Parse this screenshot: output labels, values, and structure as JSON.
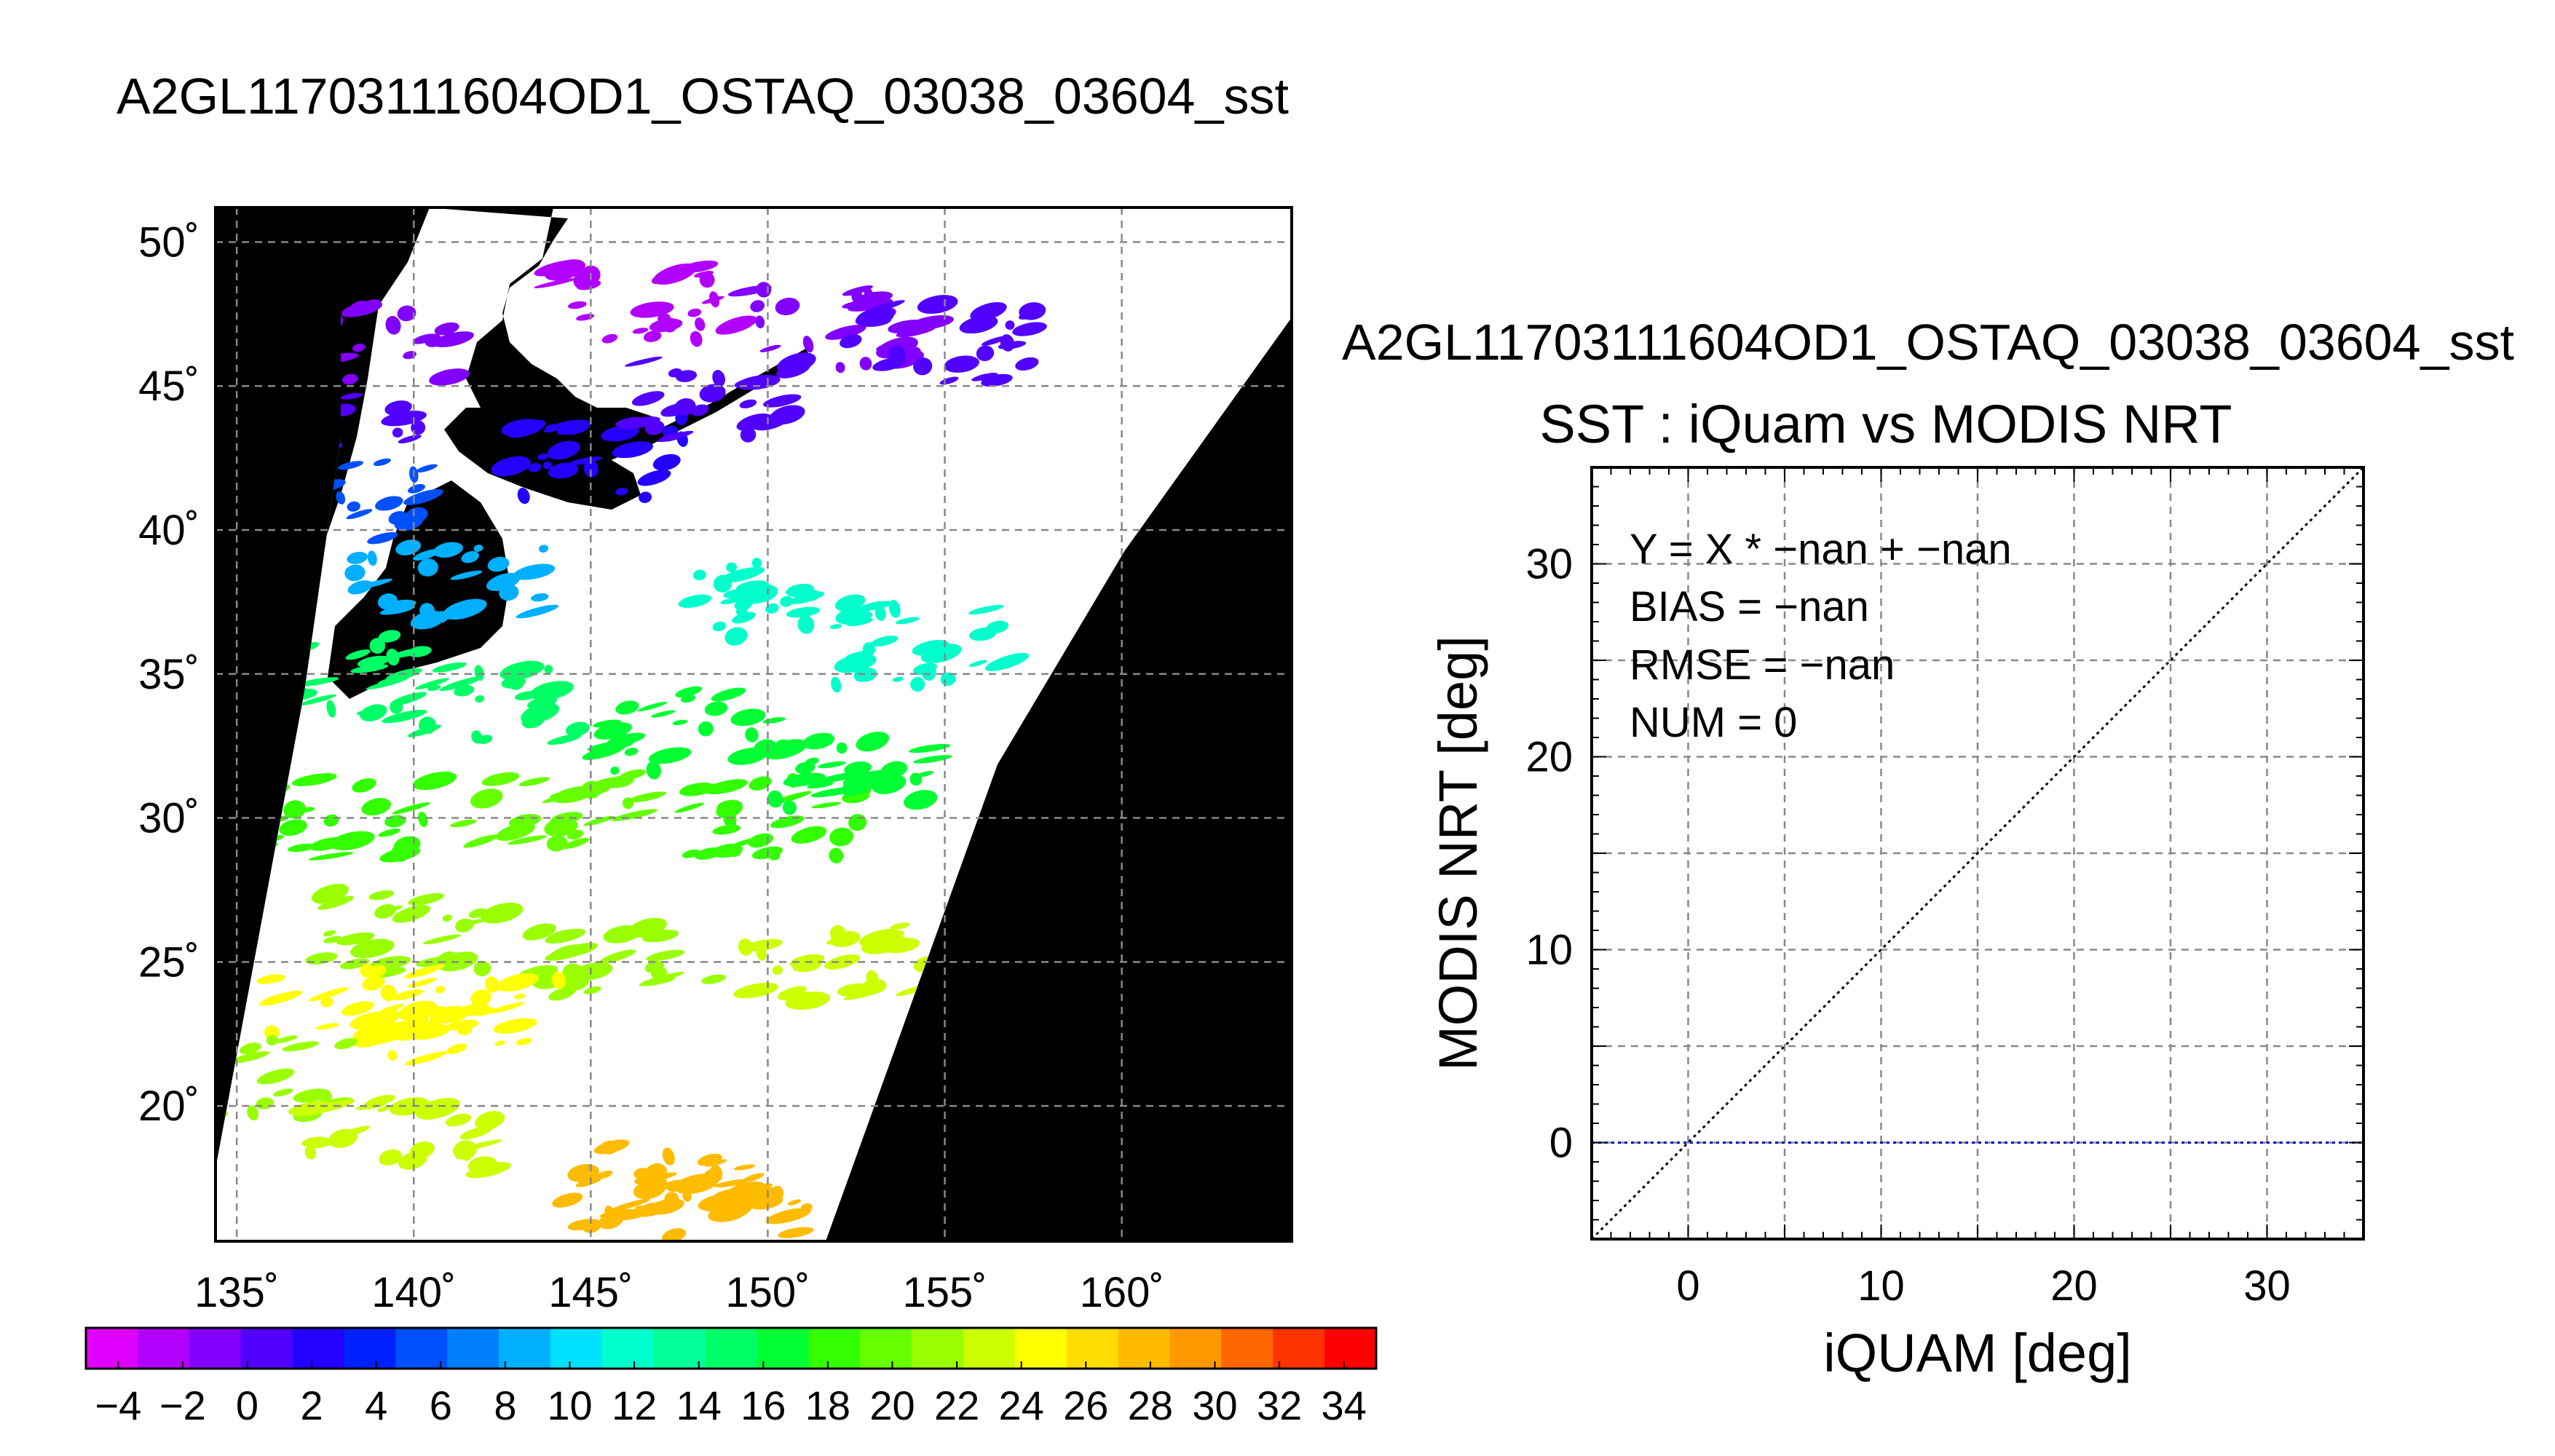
{
  "title": "A2GL11703111604OD1_OSTAQ_03038_03604_sst",
  "colors": {
    "land": "#000000",
    "no_data": "#ffffff",
    "grid": "#888888",
    "identity_line": "#000000",
    "zero_line": "#0000cc"
  },
  "chart_data": [
    {
      "type": "heatmap",
      "title": "A2GL11703111604OD1_OSTAQ_03038_03604_sst",
      "x_ticks": [
        "135˚",
        "140˚",
        "145˚",
        "150˚",
        "155˚",
        "160˚"
      ],
      "x_tick_values": [
        135,
        140,
        145,
        150,
        155,
        160
      ],
      "y_ticks": [
        "50˚",
        "45˚",
        "40˚",
        "35˚",
        "30˚",
        "25˚",
        "20˚"
      ],
      "y_tick_values": [
        50,
        45,
        40,
        35,
        30,
        25,
        20
      ],
      "xlim": [
        134.4,
        164.8
      ],
      "ylim": [
        15.3,
        51.2
      ],
      "grid": true,
      "colorbar": {
        "labels": [
          "−4",
          "−2",
          "0",
          "2",
          "4",
          "6",
          "8",
          "10",
          "12",
          "14",
          "16",
          "18",
          "20",
          "22",
          "24",
          "26",
          "28",
          "30",
          "32",
          "34"
        ],
        "range": [
          -5,
          35
        ],
        "colors": [
          "#e000ff",
          "#b100ff",
          "#8200ff",
          "#5200ff",
          "#2400ff",
          "#0020ff",
          "#0050ff",
          "#0080ff",
          "#00b0ff",
          "#00e0ff",
          "#00ffcc",
          "#00ff99",
          "#00ff66",
          "#00ff33",
          "#33ff00",
          "#66ff00",
          "#99ff00",
          "#ccff00",
          "#ffff00",
          "#ffdd00",
          "#ffbb00",
          "#ff9900",
          "#ff6600",
          "#ff3300",
          "#ff0000"
        ]
      },
      "sst_patches": [
        {
          "lon": 138.5,
          "lat": 46.5,
          "value": -1
        },
        {
          "lon": 137.5,
          "lat": 44.0,
          "value": 1
        },
        {
          "lon": 138.0,
          "lat": 41.0,
          "value": 6
        },
        {
          "lon": 141.0,
          "lat": 38.0,
          "value": 8
        },
        {
          "lon": 145.0,
          "lat": 42.5,
          "value": 2
        },
        {
          "lon": 148.5,
          "lat": 44.5,
          "value": 0
        },
        {
          "lon": 152.0,
          "lat": 47.0,
          "value": -1
        },
        {
          "lon": 155.0,
          "lat": 46.5,
          "value": 0
        },
        {
          "lon": 146.5,
          "lat": 47.8,
          "value": -2
        },
        {
          "lon": 150.0,
          "lat": 37.5,
          "value": 11
        },
        {
          "lon": 154.5,
          "lat": 36.0,
          "value": 12
        },
        {
          "lon": 137.5,
          "lat": 35.0,
          "value": 15
        },
        {
          "lon": 142.0,
          "lat": 34.0,
          "value": 15
        },
        {
          "lon": 148.0,
          "lat": 33.0,
          "value": 16
        },
        {
          "lon": 138.0,
          "lat": 30.0,
          "value": 18
        },
        {
          "lon": 144.0,
          "lat": 30.5,
          "value": 19
        },
        {
          "lon": 150.0,
          "lat": 30.0,
          "value": 18
        },
        {
          "lon": 152.5,
          "lat": 31.5,
          "value": 17
        },
        {
          "lon": 140.0,
          "lat": 26.0,
          "value": 22
        },
        {
          "lon": 146.0,
          "lat": 25.0,
          "value": 22
        },
        {
          "lon": 152.0,
          "lat": 25.0,
          "value": 23
        },
        {
          "lon": 141.5,
          "lat": 23.0,
          "value": 25
        },
        {
          "lon": 138.5,
          "lat": 23.5,
          "value": 24
        },
        {
          "lon": 135.5,
          "lat": 21.0,
          "value": 22
        },
        {
          "lon": 139.5,
          "lat": 19.0,
          "value": 23
        },
        {
          "lon": 148.5,
          "lat": 16.8,
          "value": 28
        },
        {
          "lon": 146.5,
          "lat": 17.2,
          "value": 27
        }
      ]
    },
    {
      "type": "scatter",
      "title": "SST : iQuam vs MODIS NRT",
      "subtitle": "A2GL11703111604OD1_OSTAQ_03038_03604_sst",
      "xlabel": "iQUAM [deg]",
      "ylabel": "MODIS NRT [deg]",
      "xlim": [
        -5,
        35
      ],
      "ylim": [
        -5,
        35
      ],
      "x_ticks": [
        0,
        10,
        20,
        30
      ],
      "y_ticks": [
        0,
        10,
        20,
        30
      ],
      "grid": true,
      "reference_lines": [
        {
          "type": "identity",
          "equation": "y = x",
          "style": "dotted"
        },
        {
          "type": "horizontal",
          "y": 0,
          "style": "dotted"
        }
      ],
      "stats": {
        "equation": "Y = X * −nan + −nan",
        "bias": "BIAS = −nan",
        "rmse": "RMSE = −nan",
        "num": "NUM = 0"
      },
      "points": []
    }
  ]
}
